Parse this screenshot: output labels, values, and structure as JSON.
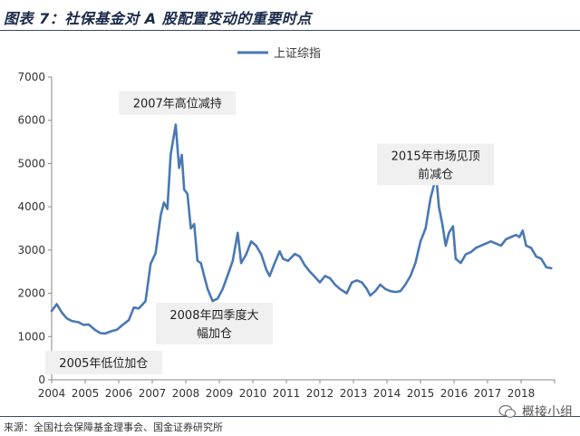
{
  "title": "图表 7：社保基金对 A 股配置变动的重要时点",
  "source": "来源：全国社会保障基金理事会、国金证券研究所",
  "watermark": "概接小组",
  "colors": {
    "line": "#4a78b4",
    "annotation_bg": "#f0f0f0",
    "axis": "#8a8a8a",
    "text": "#333333"
  },
  "chart_data": {
    "type": "line",
    "series": [
      {
        "name": "上证综指",
        "color": "#4a78b4",
        "points": [
          [
            2004.0,
            1590
          ],
          [
            2004.15,
            1750
          ],
          [
            2004.3,
            1560
          ],
          [
            2004.45,
            1420
          ],
          [
            2004.6,
            1360
          ],
          [
            2004.8,
            1330
          ],
          [
            2004.95,
            1270
          ],
          [
            2005.1,
            1280
          ],
          [
            2005.3,
            1150
          ],
          [
            2005.45,
            1080
          ],
          [
            2005.6,
            1070
          ],
          [
            2005.8,
            1130
          ],
          [
            2005.95,
            1160
          ],
          [
            2006.1,
            1260
          ],
          [
            2006.3,
            1380
          ],
          [
            2006.45,
            1670
          ],
          [
            2006.6,
            1650
          ],
          [
            2006.8,
            1820
          ],
          [
            2006.95,
            2680
          ],
          [
            2007.1,
            2930
          ],
          [
            2007.25,
            3800
          ],
          [
            2007.35,
            4100
          ],
          [
            2007.45,
            3950
          ],
          [
            2007.55,
            5200
          ],
          [
            2007.7,
            5900
          ],
          [
            2007.8,
            4900
          ],
          [
            2007.88,
            5200
          ],
          [
            2007.95,
            4400
          ],
          [
            2008.05,
            4300
          ],
          [
            2008.15,
            3500
          ],
          [
            2008.25,
            3600
          ],
          [
            2008.35,
            2750
          ],
          [
            2008.45,
            2700
          ],
          [
            2008.55,
            2400
          ],
          [
            2008.65,
            2100
          ],
          [
            2008.8,
            1820
          ],
          [
            2008.95,
            1880
          ],
          [
            2009.1,
            2100
          ],
          [
            2009.25,
            2420
          ],
          [
            2009.4,
            2750
          ],
          [
            2009.55,
            3400
          ],
          [
            2009.65,
            2700
          ],
          [
            2009.8,
            2900
          ],
          [
            2009.95,
            3200
          ],
          [
            2010.1,
            3100
          ],
          [
            2010.25,
            2900
          ],
          [
            2010.4,
            2550
          ],
          [
            2010.5,
            2400
          ],
          [
            2010.65,
            2700
          ],
          [
            2010.8,
            2970
          ],
          [
            2010.9,
            2800
          ],
          [
            2011.05,
            2750
          ],
          [
            2011.25,
            2910
          ],
          [
            2011.4,
            2850
          ],
          [
            2011.55,
            2650
          ],
          [
            2011.7,
            2500
          ],
          [
            2011.85,
            2380
          ],
          [
            2012.0,
            2250
          ],
          [
            2012.15,
            2400
          ],
          [
            2012.3,
            2350
          ],
          [
            2012.45,
            2200
          ],
          [
            2012.6,
            2100
          ],
          [
            2012.8,
            2000
          ],
          [
            2012.95,
            2250
          ],
          [
            2013.1,
            2300
          ],
          [
            2013.25,
            2250
          ],
          [
            2013.4,
            2100
          ],
          [
            2013.5,
            1950
          ],
          [
            2013.65,
            2050
          ],
          [
            2013.8,
            2200
          ],
          [
            2013.95,
            2100
          ],
          [
            2014.1,
            2050
          ],
          [
            2014.25,
            2030
          ],
          [
            2014.4,
            2050
          ],
          [
            2014.55,
            2200
          ],
          [
            2014.7,
            2400
          ],
          [
            2014.85,
            2700
          ],
          [
            2015.0,
            3200
          ],
          [
            2015.15,
            3500
          ],
          [
            2015.3,
            4200
          ],
          [
            2015.4,
            4500
          ],
          [
            2015.48,
            4600
          ],
          [
            2015.55,
            4000
          ],
          [
            2015.65,
            3600
          ],
          [
            2015.75,
            3100
          ],
          [
            2015.85,
            3400
          ],
          [
            2015.97,
            3550
          ],
          [
            2016.05,
            2800
          ],
          [
            2016.2,
            2700
          ],
          [
            2016.35,
            2900
          ],
          [
            2016.5,
            2950
          ],
          [
            2016.65,
            3050
          ],
          [
            2016.8,
            3100
          ],
          [
            2016.95,
            3150
          ],
          [
            2017.1,
            3200
          ],
          [
            2017.25,
            3150
          ],
          [
            2017.4,
            3100
          ],
          [
            2017.55,
            3250
          ],
          [
            2017.7,
            3300
          ],
          [
            2017.85,
            3350
          ],
          [
            2017.95,
            3300
          ],
          [
            2018.05,
            3450
          ],
          [
            2018.15,
            3100
          ],
          [
            2018.3,
            3050
          ],
          [
            2018.45,
            2850
          ],
          [
            2018.6,
            2800
          ],
          [
            2018.75,
            2600
          ],
          [
            2018.9,
            2580
          ]
        ]
      }
    ],
    "x_axis": {
      "min": 2004,
      "max": 2019,
      "ticks": [
        "2004",
        "2005",
        "2006",
        "2007",
        "2008",
        "2009",
        "2010",
        "2011",
        "2012",
        "2013",
        "2014",
        "2015",
        "2016",
        "2017",
        "2018"
      ]
    },
    "y_axis": {
      "min": 0,
      "max": 7000,
      "ticks": [
        "0",
        "1000",
        "2000",
        "3000",
        "4000",
        "5000",
        "6000",
        "7000"
      ]
    },
    "legend": {
      "placement": "top-center",
      "label": "上证综指"
    },
    "grid": false,
    "annotations": [
      {
        "lines": [
          "2007年高位减持"
        ],
        "x": 2007.75,
        "y": 6400
      },
      {
        "lines": [
          "2008年四季度大",
          "幅加仓"
        ],
        "x": 2008.85,
        "y": 1300
      },
      {
        "lines": [
          "2005年低位加仓"
        ],
        "x": 2005.55,
        "y": 400
      },
      {
        "lines": [
          "2015年市场见顶",
          "前减仓"
        ],
        "x": 2015.45,
        "y": 4980
      }
    ]
  }
}
